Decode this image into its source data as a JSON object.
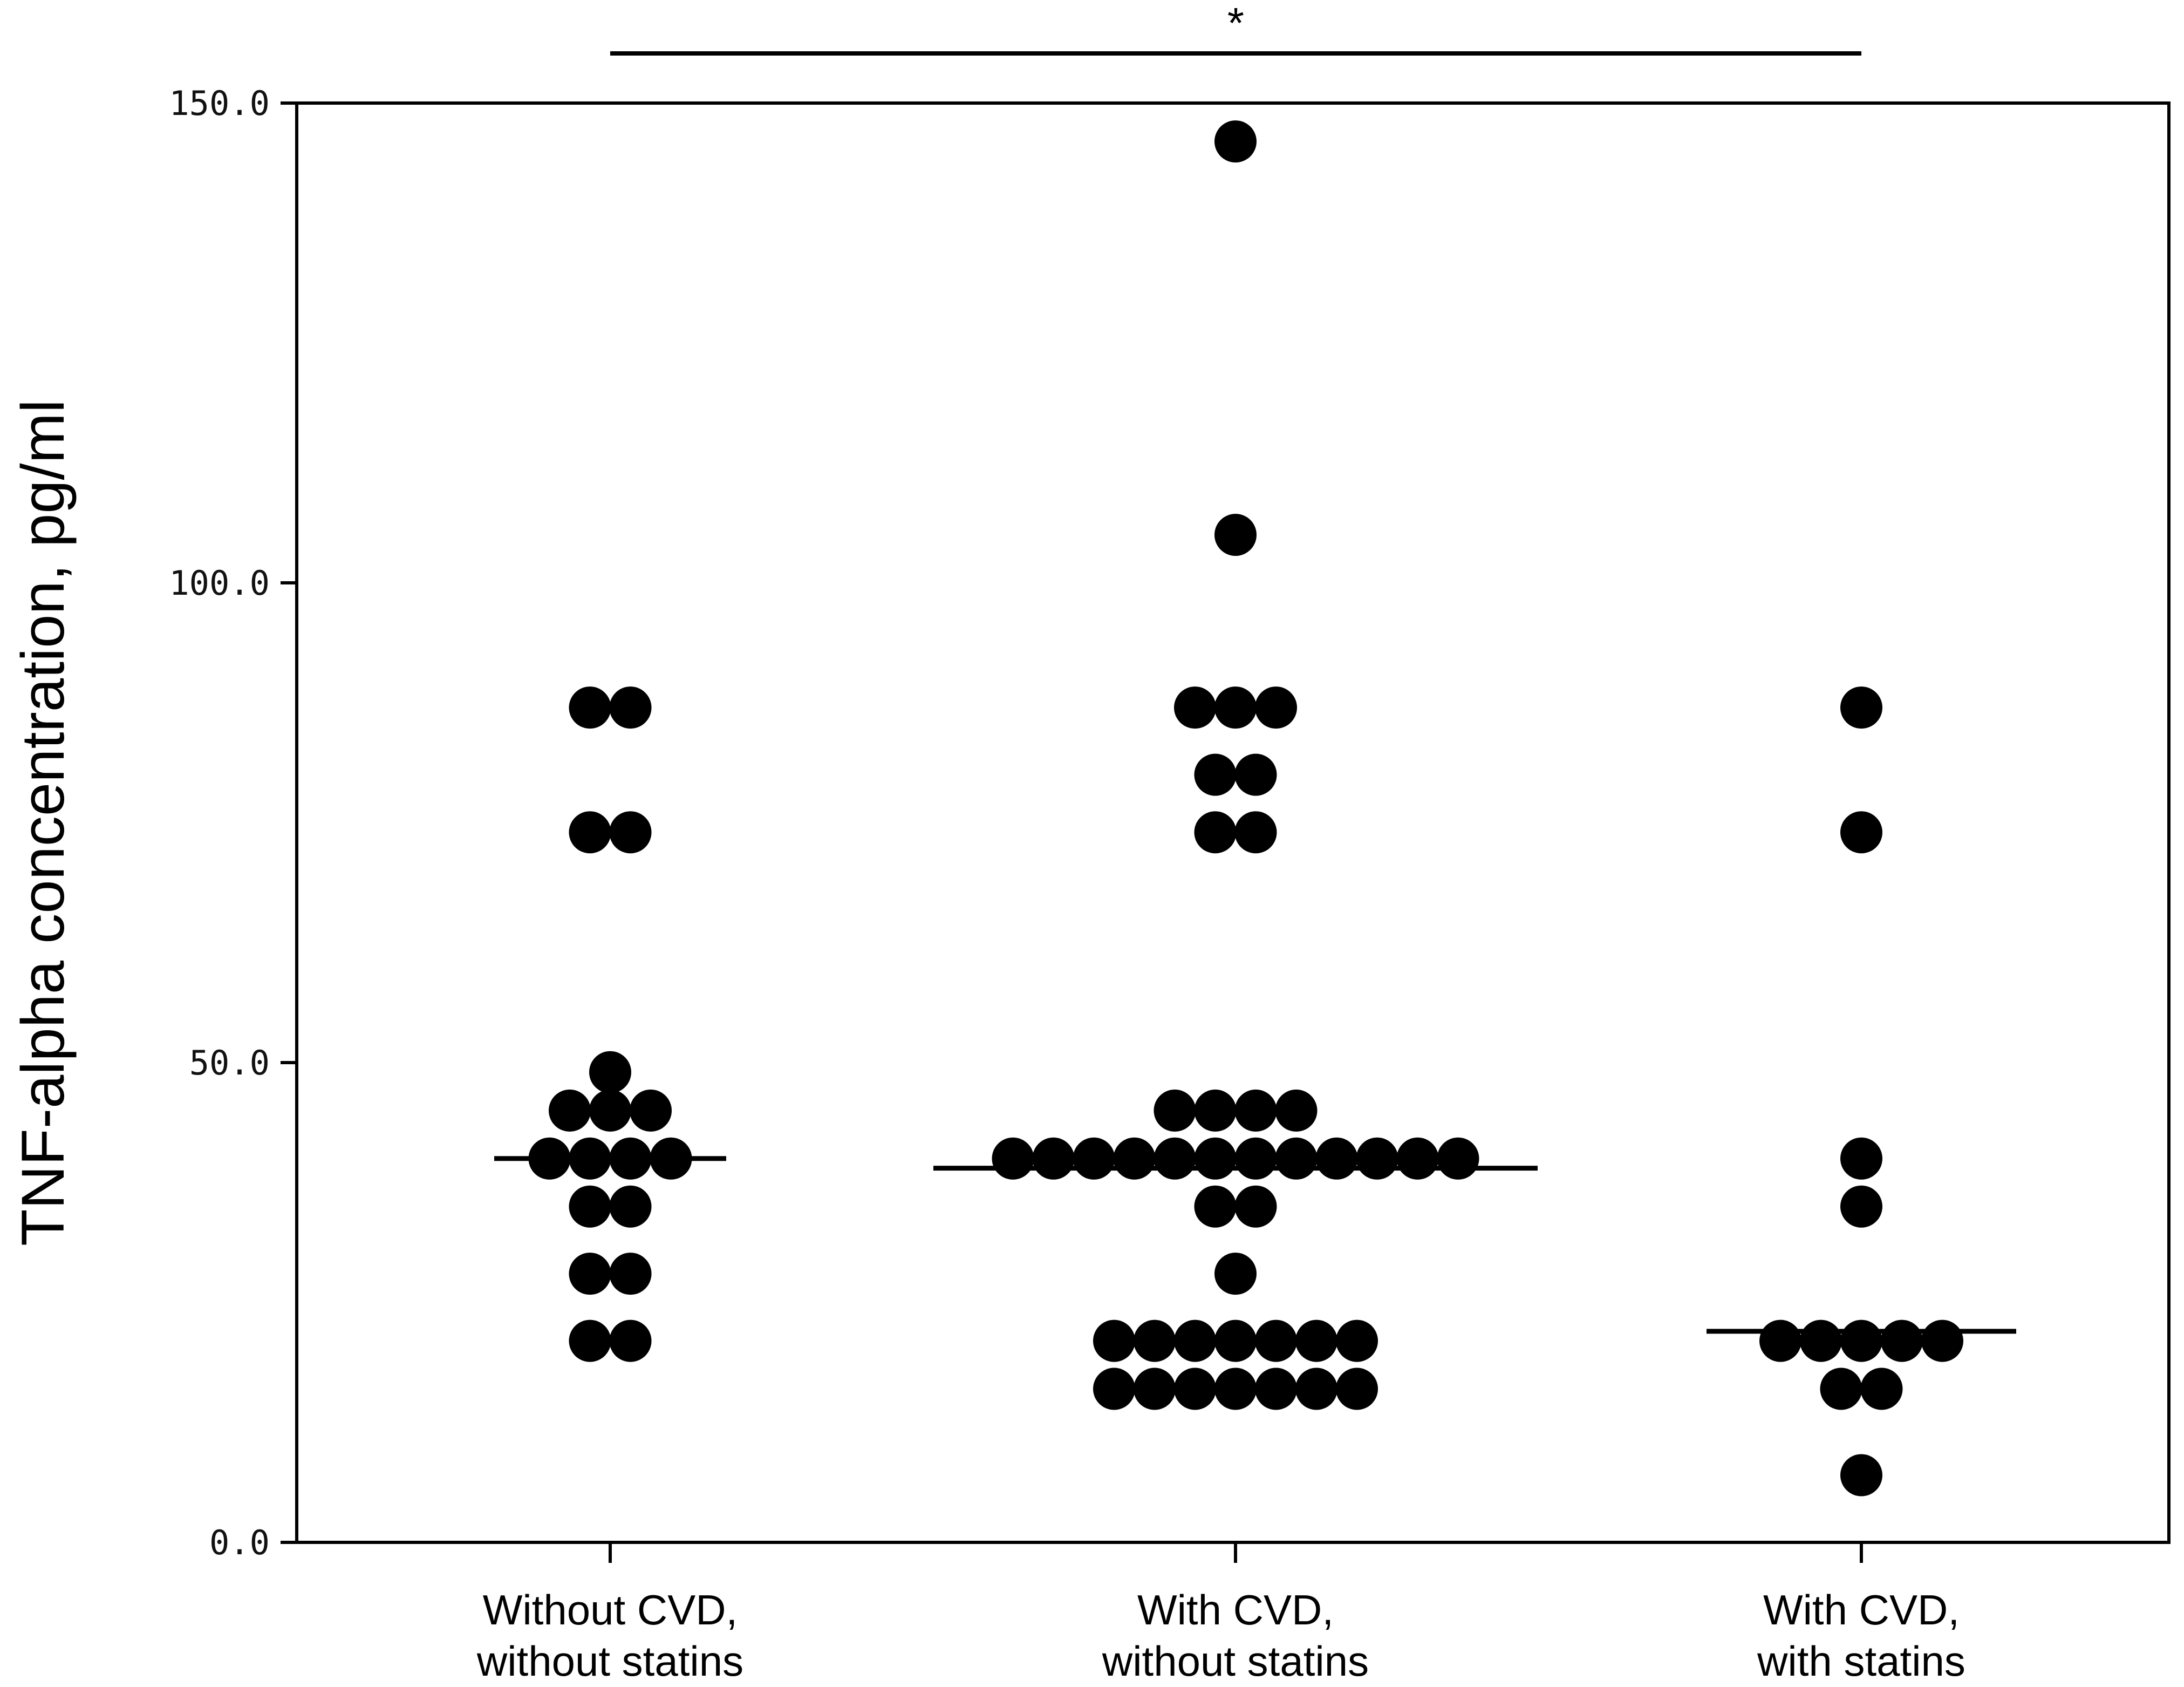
{
  "chart_data": {
    "type": "scatter",
    "subtype": "dot plot with median lines",
    "ylabel": "TNF-alpha concentration, pg/ml",
    "xlabel": "",
    "ylim": [
      0,
      150
    ],
    "yticks": [
      {
        "value": 0,
        "label": "0.0"
      },
      {
        "value": 50,
        "label": "50.0"
      },
      {
        "value": 100,
        "label": "100.0"
      },
      {
        "value": 150,
        "label": "150.0"
      }
    ],
    "grid": false,
    "categories": [
      [
        "Without CVD,",
        "without statins"
      ],
      [
        "With CVD,",
        "without statins"
      ],
      [
        "With CVD,",
        "with statins"
      ]
    ],
    "series": [
      {
        "name": "Without CVD, without statins",
        "median": 40,
        "values": [
          87,
          87,
          74,
          74,
          49,
          45,
          45,
          45,
          40,
          40,
          40,
          40,
          35,
          35,
          28,
          28,
          21,
          21
        ]
      },
      {
        "name": "With CVD, without statins",
        "median": 39,
        "values": [
          146,
          105,
          87,
          87,
          87,
          80,
          80,
          74,
          74,
          45,
          45,
          45,
          45,
          40,
          40,
          40,
          40,
          40,
          40,
          40,
          40,
          40,
          40,
          40,
          40,
          35,
          35,
          28,
          21,
          21,
          21,
          21,
          21,
          21,
          21,
          16,
          16,
          16,
          16,
          16,
          16,
          16
        ]
      },
      {
        "name": "With CVD, with statins",
        "median": 22,
        "values": [
          87,
          74,
          40,
          35,
          21,
          21,
          21,
          21,
          21,
          16,
          16,
          7
        ]
      }
    ],
    "significance": {
      "from_category": 0,
      "to_category": 2,
      "label": "*"
    },
    "colors": {
      "marker": "#000000",
      "axis": "#000000",
      "background": "#ffffff"
    }
  }
}
